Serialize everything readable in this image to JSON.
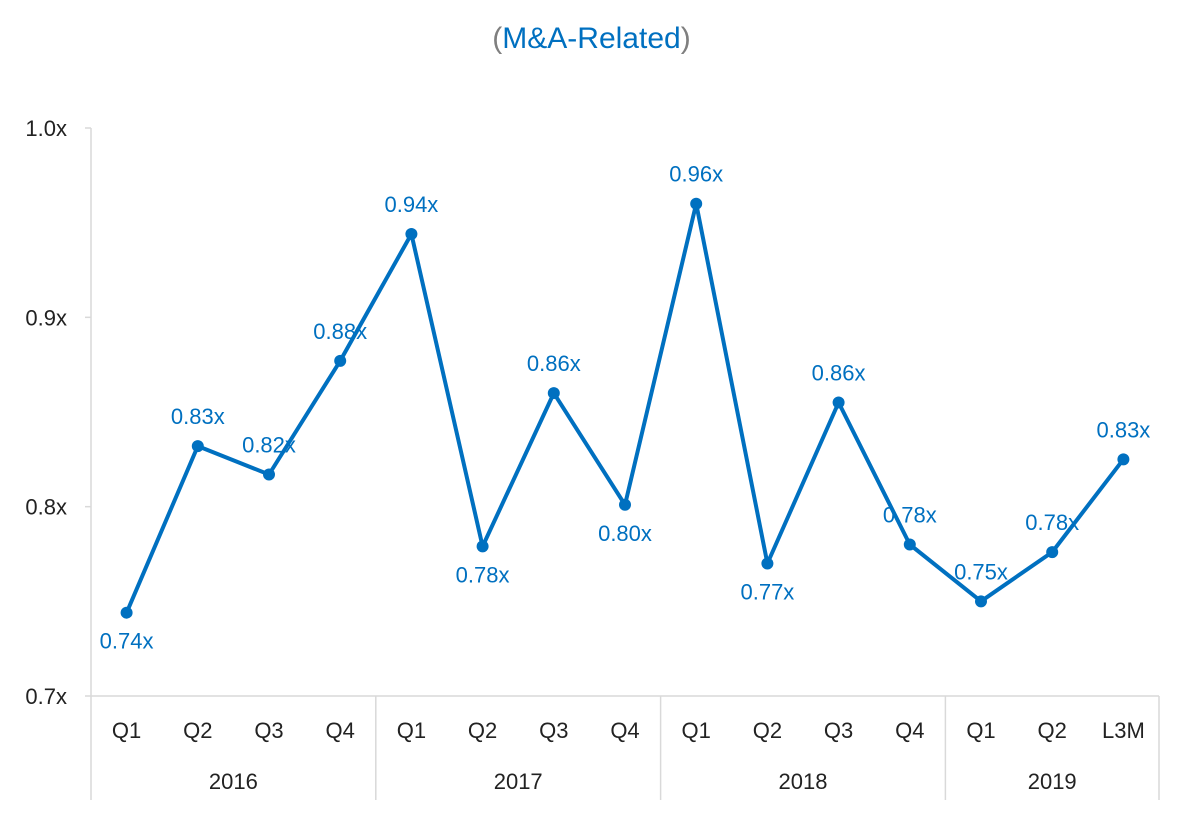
{
  "chart_data": {
    "type": "line",
    "title": {
      "open": "(",
      "text": "M&A-Related",
      "close": ")"
    },
    "xlabel": "",
    "ylabel": "",
    "ylim": [
      0.7,
      1.0
    ],
    "yticks": [
      "0.7x",
      "0.8x",
      "0.9x",
      "1.0x"
    ],
    "ytick_values": [
      0.7,
      0.8,
      0.9,
      1.0
    ],
    "categories": [
      "Q1",
      "Q2",
      "Q3",
      "Q4",
      "Q1",
      "Q2",
      "Q3",
      "Q4",
      "Q1",
      "Q2",
      "Q3",
      "Q4",
      "Q1",
      "Q2",
      "L3M"
    ],
    "groups": [
      {
        "label": "2016",
        "count": 4
      },
      {
        "label": "2017",
        "count": 4
      },
      {
        "label": "2018",
        "count": 4
      },
      {
        "label": "2019",
        "count": 3
      }
    ],
    "values": [
      0.744,
      0.832,
      0.817,
      0.877,
      0.944,
      0.779,
      0.86,
      0.801,
      0.96,
      0.77,
      0.855,
      0.78,
      0.75,
      0.776,
      0.825
    ],
    "data_labels": [
      "0.74x",
      "0.83x",
      "0.82x",
      "0.88x",
      "0.94x",
      "0.78x",
      "0.86x",
      "0.80x",
      "0.96x",
      "0.77x",
      "0.86x",
      "0.78x",
      "0.75x",
      "0.78x",
      "0.83x"
    ],
    "label_positions": [
      "below",
      "above",
      "above",
      "above",
      "above",
      "below",
      "above",
      "below",
      "above",
      "below",
      "above",
      "above",
      "above",
      "above",
      "above"
    ],
    "colors": {
      "line": "#0070C0",
      "axis": "#d9d9d9",
      "title_paren": "#7f7f7f"
    },
    "grid": false
  }
}
